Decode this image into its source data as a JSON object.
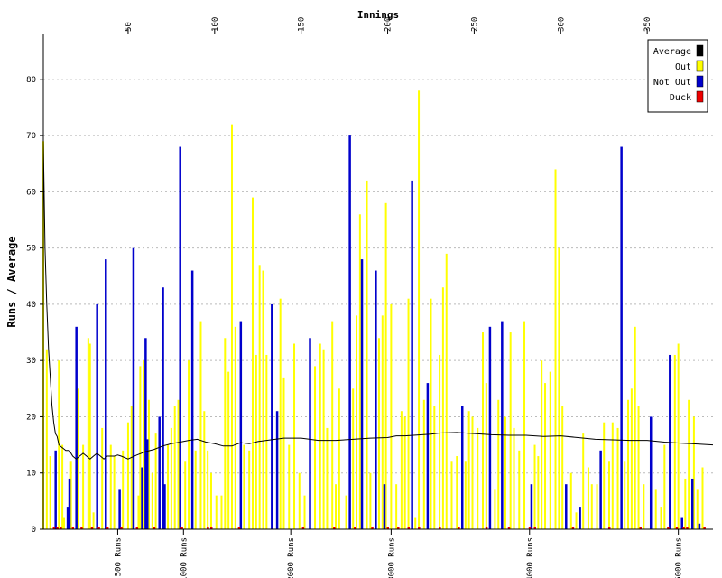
{
  "chart_data": {
    "type": "bar",
    "title": "Innings",
    "ylabel": "Runs / Average",
    "x_range": [
      1,
      388
    ],
    "ylim": [
      0,
      88
    ],
    "y_ticks": [
      "0",
      "10",
      "20",
      "30",
      "40",
      "50",
      "60",
      "70",
      "80"
    ],
    "top_axis": {
      "label": "Innings",
      "ticks": [
        "50",
        "100",
        "150",
        "200",
        "250",
        "300",
        "350"
      ]
    },
    "bottom_axis": {
      "ticks": [
        {
          "label": "500 Runs",
          "innings": 44
        },
        {
          "label": "1000 Runs",
          "innings": 82
        },
        {
          "label": "2000 Runs",
          "innings": 144
        },
        {
          "label": "3000 Runs",
          "innings": 202
        },
        {
          "label": "4000 Runs",
          "innings": 282
        },
        {
          "label": "5000 Runs",
          "innings": 368
        }
      ]
    },
    "grid": "horizontal dotted",
    "legend_position": "top-right",
    "legend": [
      {
        "label": "Average",
        "color": "#000000"
      },
      {
        "label": "Out",
        "color": "#ffff00"
      },
      {
        "label": "Not Out",
        "color": "#0000cc"
      },
      {
        "label": "Duck",
        "color": "#ee0000"
      }
    ],
    "colors": {
      "out": "#ffff00",
      "not_out": "#0000cc",
      "duck": "#ee0000",
      "average": "#000000"
    },
    "not_out_innings": [
      [
        8,
        14
      ],
      [
        15,
        4
      ],
      [
        16,
        9
      ],
      [
        20,
        36
      ],
      [
        32,
        40
      ],
      [
        37,
        48
      ],
      [
        45,
        7
      ],
      [
        53,
        50
      ],
      [
        58,
        11
      ],
      [
        60,
        34
      ],
      [
        61,
        16
      ],
      [
        68,
        20
      ],
      [
        70,
        43
      ],
      [
        71,
        8
      ],
      [
        80,
        68
      ],
      [
        87,
        46
      ],
      [
        115,
        37
      ],
      [
        133,
        40
      ],
      [
        136,
        21
      ],
      [
        155,
        34
      ],
      [
        178,
        70
      ],
      [
        185,
        48
      ],
      [
        193,
        46
      ],
      [
        198,
        8
      ],
      [
        214,
        62
      ],
      [
        223,
        26
      ],
      [
        243,
        22
      ],
      [
        259,
        36
      ],
      [
        266,
        37
      ],
      [
        283,
        8
      ],
      [
        303,
        8
      ],
      [
        311,
        4
      ],
      [
        323,
        14
      ],
      [
        335,
        68
      ],
      [
        352,
        20
      ],
      [
        363,
        31
      ],
      [
        370,
        2
      ],
      [
        376,
        9
      ],
      [
        380,
        1
      ]
    ],
    "out_innings": [
      [
        1,
        69
      ],
      [
        3,
        32
      ],
      [
        5,
        13
      ],
      [
        10,
        30
      ],
      [
        12,
        15
      ],
      [
        13,
        2
      ],
      [
        17,
        12
      ],
      [
        21,
        25
      ],
      [
        24,
        15
      ],
      [
        27,
        34
      ],
      [
        28,
        33
      ],
      [
        30,
        3
      ],
      [
        35,
        18
      ],
      [
        40,
        15
      ],
      [
        42,
        13
      ],
      [
        47,
        14
      ],
      [
        50,
        19
      ],
      [
        52,
        22
      ],
      [
        56,
        6
      ],
      [
        57,
        29
      ],
      [
        59,
        30
      ],
      [
        62,
        23
      ],
      [
        64,
        10
      ],
      [
        66,
        17
      ],
      [
        73,
        15
      ],
      [
        75,
        18
      ],
      [
        77,
        22
      ],
      [
        79,
        23
      ],
      [
        83,
        12
      ],
      [
        85,
        30
      ],
      [
        89,
        14
      ],
      [
        92,
        37
      ],
      [
        94,
        21
      ],
      [
        96,
        14
      ],
      [
        98,
        10
      ],
      [
        101,
        6
      ],
      [
        104,
        6
      ],
      [
        106,
        34
      ],
      [
        108,
        28
      ],
      [
        110,
        72
      ],
      [
        112,
        36
      ],
      [
        117,
        15
      ],
      [
        120,
        14
      ],
      [
        122,
        59
      ],
      [
        124,
        31
      ],
      [
        126,
        47
      ],
      [
        128,
        46
      ],
      [
        130,
        31
      ],
      [
        138,
        41
      ],
      [
        140,
        27
      ],
      [
        143,
        15
      ],
      [
        146,
        33
      ],
      [
        149,
        10
      ],
      [
        152,
        6
      ],
      [
        158,
        29
      ],
      [
        161,
        33
      ],
      [
        163,
        32
      ],
      [
        165,
        18
      ],
      [
        168,
        37
      ],
      [
        170,
        8
      ],
      [
        172,
        25
      ],
      [
        176,
        6
      ],
      [
        180,
        25
      ],
      [
        182,
        38
      ],
      [
        184,
        56
      ],
      [
        188,
        62
      ],
      [
        190,
        10
      ],
      [
        195,
        34
      ],
      [
        197,
        38
      ],
      [
        199,
        58
      ],
      [
        202,
        40
      ],
      [
        205,
        8
      ],
      [
        208,
        21
      ],
      [
        210,
        20
      ],
      [
        212,
        41
      ],
      [
        216,
        2
      ],
      [
        218,
        78
      ],
      [
        221,
        23
      ],
      [
        225,
        41
      ],
      [
        227,
        22
      ],
      [
        230,
        31
      ],
      [
        232,
        43
      ],
      [
        234,
        49
      ],
      [
        237,
        12
      ],
      [
        240,
        13
      ],
      [
        245,
        12
      ],
      [
        247,
        21
      ],
      [
        249,
        20
      ],
      [
        252,
        18
      ],
      [
        255,
        35
      ],
      [
        257,
        26
      ],
      [
        262,
        7
      ],
      [
        264,
        23
      ],
      [
        268,
        20
      ],
      [
        271,
        35
      ],
      [
        273,
        18
      ],
      [
        276,
        14
      ],
      [
        279,
        37
      ],
      [
        285,
        15
      ],
      [
        287,
        13
      ],
      [
        289,
        30
      ],
      [
        291,
        26
      ],
      [
        294,
        28
      ],
      [
        297,
        64
      ],
      [
        299,
        50
      ],
      [
        301,
        22
      ],
      [
        306,
        10
      ],
      [
        309,
        3
      ],
      [
        313,
        17
      ],
      [
        316,
        11
      ],
      [
        318,
        8
      ],
      [
        321,
        8
      ],
      [
        325,
        19
      ],
      [
        328,
        12
      ],
      [
        330,
        19
      ],
      [
        333,
        18
      ],
      [
        337,
        12
      ],
      [
        339,
        23
      ],
      [
        341,
        25
      ],
      [
        343,
        36
      ],
      [
        345,
        22
      ],
      [
        348,
        8
      ],
      [
        355,
        7
      ],
      [
        358,
        4
      ],
      [
        360,
        15
      ],
      [
        366,
        31
      ],
      [
        368,
        33
      ],
      [
        372,
        9
      ],
      [
        374,
        23
      ],
      [
        377,
        20
      ],
      [
        379,
        7
      ],
      [
        382,
        11
      ]
    ],
    "ducks": [
      7,
      9,
      11,
      18,
      23,
      29,
      33,
      38,
      46,
      55,
      65,
      81,
      96,
      98,
      114,
      151,
      169,
      181,
      191,
      200,
      206,
      212,
      218,
      230,
      241,
      257,
      270,
      282,
      285,
      307,
      328,
      346,
      362,
      367,
      371,
      373,
      383
    ],
    "average_line": [
      [
        1,
        69
      ],
      [
        2,
        50
      ],
      [
        3,
        40
      ],
      [
        4,
        32
      ],
      [
        5,
        27
      ],
      [
        6,
        22
      ],
      [
        7,
        19
      ],
      [
        8,
        17
      ],
      [
        9,
        16.5
      ],
      [
        10,
        15
      ],
      [
        12,
        14.5
      ],
      [
        14,
        14
      ],
      [
        16,
        14
      ],
      [
        18,
        13
      ],
      [
        20,
        12.5
      ],
      [
        22,
        13
      ],
      [
        24,
        13.5
      ],
      [
        26,
        13
      ],
      [
        28,
        12.5
      ],
      [
        30,
        13
      ],
      [
        32,
        13.5
      ],
      [
        34,
        13
      ],
      [
        36,
        12.5
      ],
      [
        38,
        13
      ],
      [
        40,
        13
      ],
      [
        42,
        13
      ],
      [
        44,
        13.2
      ],
      [
        46,
        13
      ],
      [
        50,
        12.5
      ],
      [
        55,
        13.2
      ],
      [
        60,
        13.8
      ],
      [
        65,
        14.2
      ],
      [
        70,
        14.8
      ],
      [
        75,
        15.2
      ],
      [
        80,
        15.5
      ],
      [
        85,
        15.8
      ],
      [
        90,
        16
      ],
      [
        95,
        15.5
      ],
      [
        100,
        15.2
      ],
      [
        105,
        14.8
      ],
      [
        110,
        14.8
      ],
      [
        115,
        15.4
      ],
      [
        120,
        15.2
      ],
      [
        125,
        15.6
      ],
      [
        130,
        15.8
      ],
      [
        140,
        16.2
      ],
      [
        150,
        16.2
      ],
      [
        160,
        15.8
      ],
      [
        170,
        15.8
      ],
      [
        180,
        16
      ],
      [
        190,
        16.2
      ],
      [
        200,
        16.3
      ],
      [
        205,
        16.6
      ],
      [
        210,
        16.6
      ],
      [
        215,
        16.7
      ],
      [
        220,
        16.8
      ],
      [
        225,
        16.9
      ],
      [
        230,
        17.1
      ],
      [
        240,
        17.2
      ],
      [
        250,
        17
      ],
      [
        260,
        16.8
      ],
      [
        270,
        16.7
      ],
      [
        280,
        16.7
      ],
      [
        290,
        16.5
      ],
      [
        300,
        16.6
      ],
      [
        310,
        16.3
      ],
      [
        320,
        16
      ],
      [
        330,
        15.9
      ],
      [
        340,
        15.8
      ],
      [
        350,
        15.8
      ],
      [
        360,
        15.5
      ],
      [
        370,
        15.3
      ],
      [
        388,
        15
      ]
    ]
  }
}
